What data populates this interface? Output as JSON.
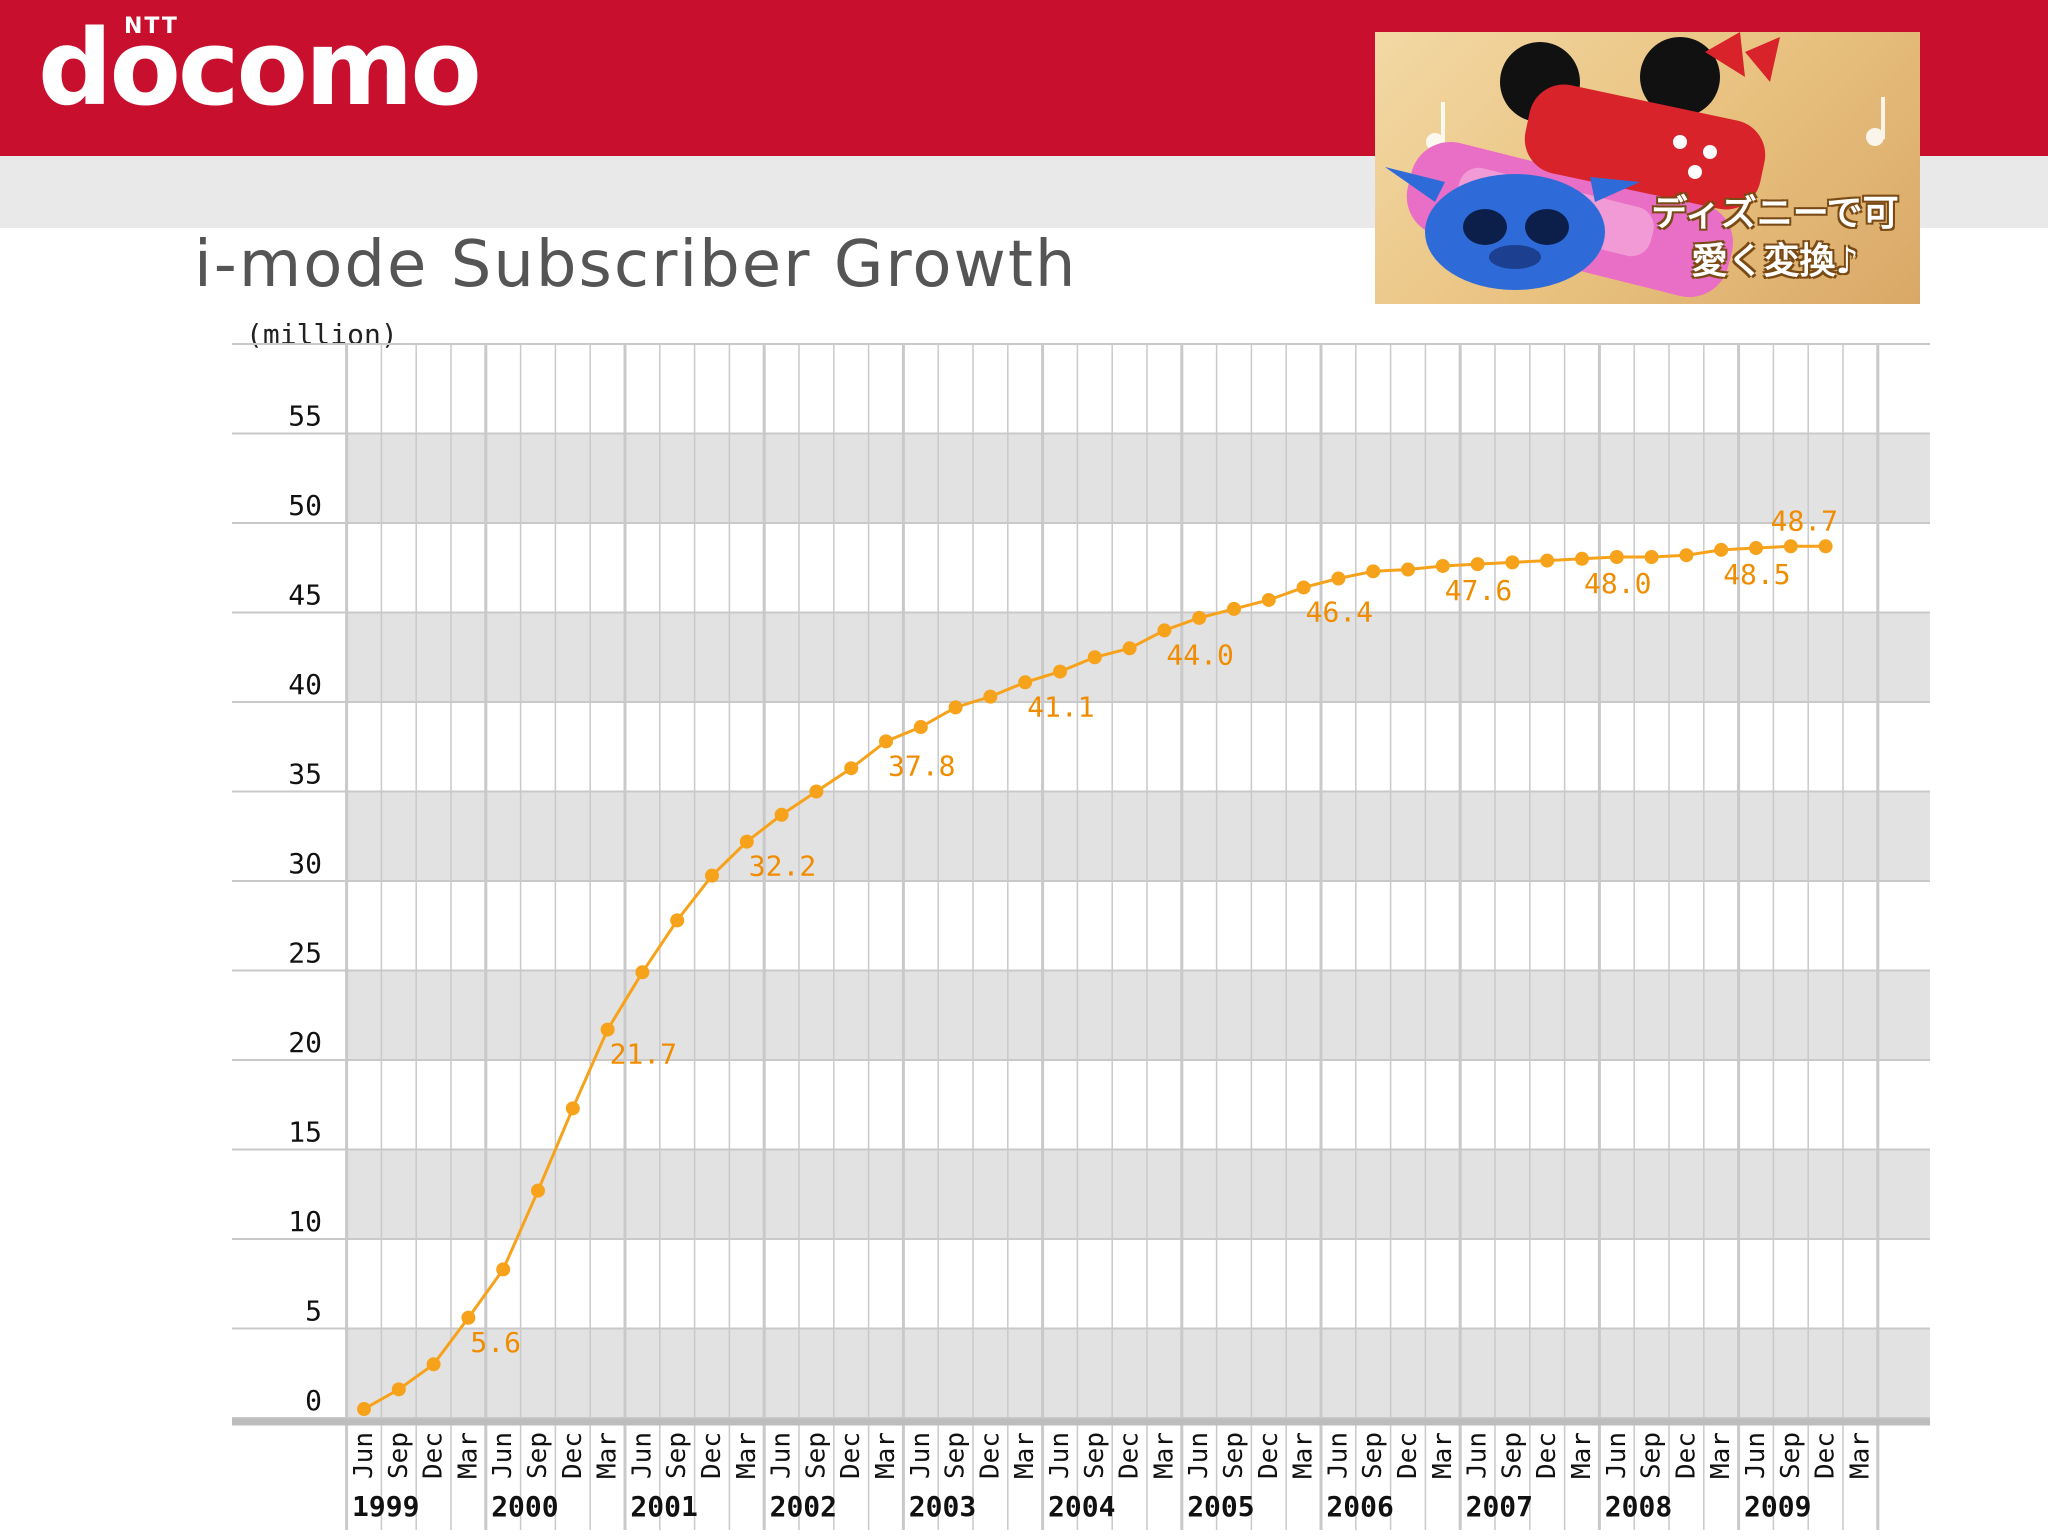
{
  "header": {
    "logo_small": "NTT",
    "logo_main": "docomo"
  },
  "ad": {
    "caption": "ディズニーで可愛く変換♪",
    "colors": {
      "bg": "#e8c07e",
      "phone": "#e96ec5",
      "stitch": "#2e6bd8",
      "minnie_red": "#d8232a"
    }
  },
  "colors": {
    "brand_red": "#c8102e",
    "band_gray": "#e2e2e2",
    "grid_gray": "#c9c9c9",
    "line_orange": "#f7a21b",
    "label_orange": "#f08c00"
  },
  "chart_data": {
    "type": "line",
    "title": "i-mode Subscriber Growth",
    "ylabel": "(million)",
    "xlabel": "",
    "ylim": [
      0,
      55
    ],
    "yticks": [
      0,
      5,
      10,
      15,
      20,
      25,
      30,
      35,
      40,
      45,
      50,
      55
    ],
    "grid": true,
    "years": [
      "1999",
      "2000",
      "2001",
      "2002",
      "2003",
      "2004",
      "2005",
      "2006",
      "2007",
      "2008",
      "2009"
    ],
    "months": [
      "Jun",
      "Sep",
      "Dec",
      "Mar"
    ],
    "values": [
      0.5,
      1.6,
      3.0,
      5.6,
      8.3,
      12.7,
      17.3,
      21.7,
      24.9,
      27.8,
      30.3,
      32.2,
      33.7,
      35.0,
      36.3,
      37.8,
      38.6,
      39.7,
      40.3,
      41.1,
      41.7,
      42.5,
      43.0,
      44.0,
      44.7,
      45.2,
      45.7,
      46.4,
      46.9,
      47.3,
      47.4,
      47.6,
      47.7,
      47.8,
      47.9,
      48.0,
      48.1,
      48.1,
      48.2,
      48.5,
      48.6,
      48.7,
      48.7
    ],
    "point_labels": [
      {
        "index": 3,
        "text": "5.6"
      },
      {
        "index": 7,
        "text": "21.7"
      },
      {
        "index": 11,
        "text": "32.2"
      },
      {
        "index": 15,
        "text": "37.8"
      },
      {
        "index": 19,
        "text": "41.1"
      },
      {
        "index": 23,
        "text": "44.0"
      },
      {
        "index": 27,
        "text": "46.4"
      },
      {
        "index": 31,
        "text": "47.6"
      },
      {
        "index": 35,
        "text": "48.0"
      },
      {
        "index": 39,
        "text": "48.5"
      },
      {
        "index": 42,
        "text": "48.7"
      }
    ]
  }
}
